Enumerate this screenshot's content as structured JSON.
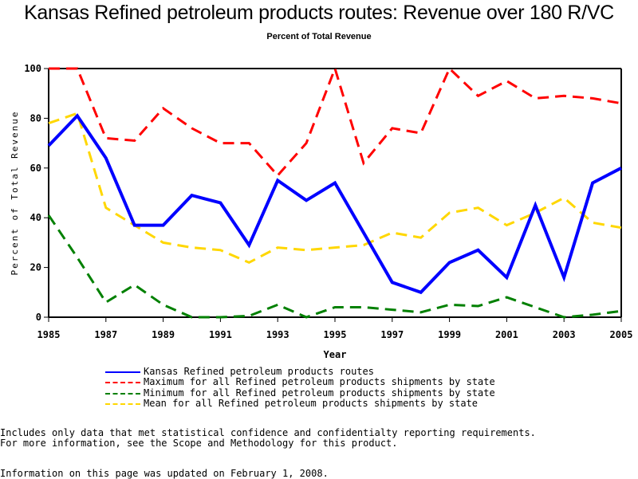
{
  "header": {
    "title": "Kansas Refined petroleum products routes: Revenue over 180 R/VC",
    "subtitle": "Percent of Total Revenue"
  },
  "chart_data": {
    "type": "line",
    "title": "Kansas Refined petroleum products routes: Revenue over 180 R/VC",
    "subtitle": "Percent of Total Revenue",
    "xlabel": "Year",
    "ylabel": "Percent of Total Revenue",
    "xlim": [
      1985,
      2005
    ],
    "ylim": [
      0,
      100
    ],
    "grid": false,
    "legend_position": "bottom",
    "x_ticks": [
      "1985",
      "1987",
      "1989",
      "1991",
      "1993",
      "1995",
      "1997",
      "1999",
      "2001",
      "2003",
      "2005"
    ],
    "y_ticks": [
      "0",
      "20",
      "40",
      "60",
      "80",
      "100"
    ],
    "x": [
      1985,
      1986,
      1987,
      1988,
      1989,
      1990,
      1991,
      1992,
      1993,
      1994,
      1995,
      1996,
      1997,
      1998,
      1999,
      2000,
      2001,
      2002,
      2003,
      2004,
      2005
    ],
    "series": [
      {
        "name": "Kansas Refined petroleum products routes",
        "color": "#0000ff",
        "style": "solid",
        "values": [
          69,
          81,
          64,
          37,
          37,
          49,
          46,
          29,
          55,
          47,
          54,
          34,
          14,
          10,
          22,
          27,
          16,
          45,
          16,
          54,
          60
        ]
      },
      {
        "name": "Maximum for all Refined petroleum products shipments by state",
        "color": "#ff0000",
        "style": "dashed",
        "values": [
          100,
          100,
          72,
          71,
          84,
          76,
          70,
          70,
          57,
          70,
          100,
          62,
          76,
          74,
          100,
          89,
          95,
          88,
          89,
          88,
          86
        ]
      },
      {
        "name": "Minimum for all Refined petroleum products shipments by state",
        "color": "#008000",
        "style": "dashed",
        "values": [
          41,
          24,
          6,
          13,
          5,
          0,
          0,
          0.5,
          5,
          0,
          4,
          4,
          3,
          2,
          5,
          4.5,
          8,
          4,
          0,
          1,
          2.5
        ]
      },
      {
        "name": "Mean for all Refined petroleum products shipments by state",
        "color": "#ffd700",
        "style": "dashed",
        "values": [
          78,
          82,
          44,
          37,
          30,
          28,
          27,
          22,
          28,
          27,
          28,
          29,
          34,
          32,
          42,
          44,
          37,
          42,
          48,
          38,
          36
        ]
      }
    ]
  },
  "footer": {
    "note_line1": "Includes only data that met statistical confidence and confidentialty reporting requirements.",
    "note_line2": "For more information, see the Scope and Methodology for this product.",
    "updated": "Information on this page was updated on February 1, 2008."
  }
}
